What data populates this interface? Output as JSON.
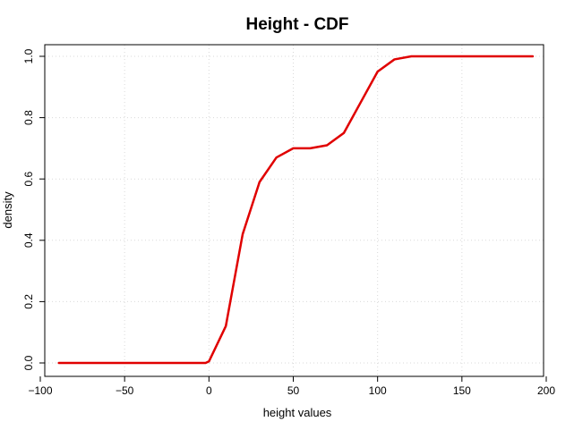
{
  "chart_data": {
    "type": "line",
    "title": "Height - CDF",
    "xlabel": "height values",
    "ylabel": "density",
    "xlim": [
      -100,
      200
    ],
    "ylim": [
      0.0,
      1.0
    ],
    "x_ticks": [
      -100,
      -50,
      0,
      50,
      100,
      150,
      200
    ],
    "x_tick_labels": [
      "−100",
      "−50",
      "0",
      "50",
      "100",
      "150",
      "200"
    ],
    "y_ticks": [
      0.0,
      0.2,
      0.4,
      0.6,
      0.8,
      1.0
    ],
    "y_tick_labels": [
      "0.0",
      "0.2",
      "0.4",
      "0.6",
      "0.8",
      "1.0"
    ],
    "grid": true,
    "series": [
      {
        "color": "#e00000",
        "x": [
          -89,
          -60,
          -30,
          -2,
          0,
          10,
          20,
          30,
          40,
          50,
          60,
          70,
          80,
          90,
          100,
          110,
          120,
          130,
          150,
          192
        ],
        "y": [
          0.0,
          0.0,
          0.0,
          0.0,
          0.005,
          0.12,
          0.42,
          0.59,
          0.67,
          0.7,
          0.7,
          0.71,
          0.75,
          0.85,
          0.95,
          0.99,
          1.0,
          1.0,
          1.0,
          1.0
        ]
      }
    ]
  }
}
